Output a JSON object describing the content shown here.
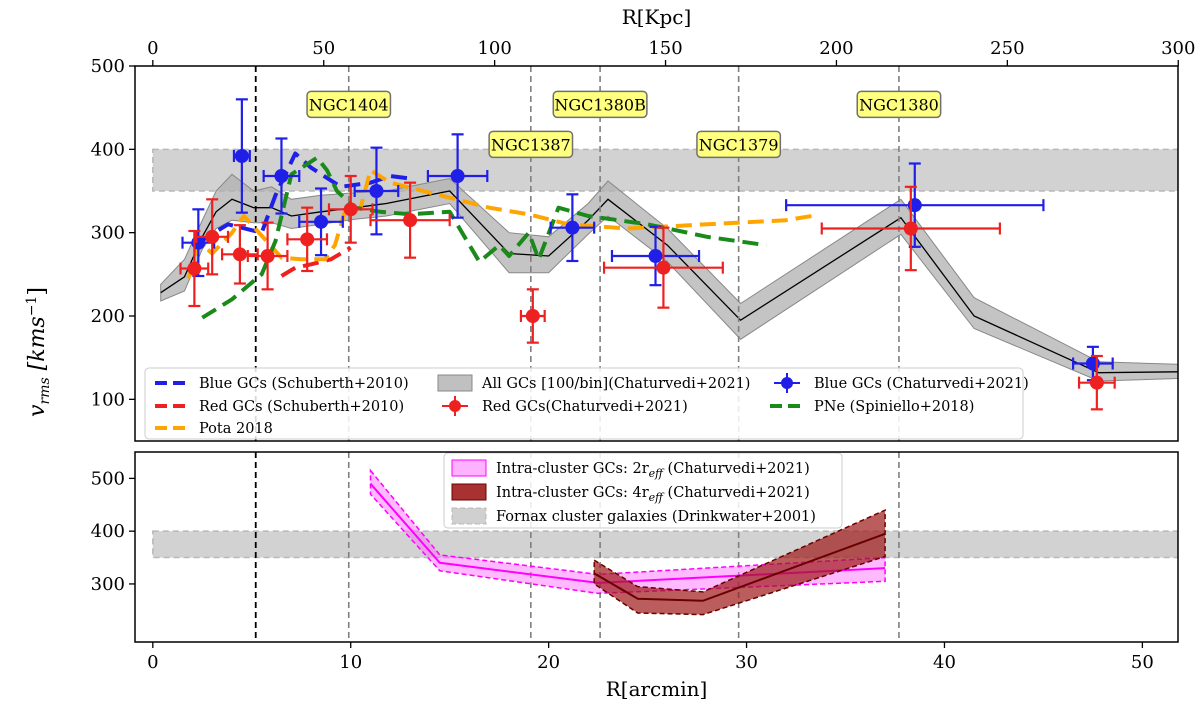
{
  "chart_data": [
    {
      "type": "line",
      "panel": "top",
      "ylabel": "v_rms [kms^-1]",
      "top_xlabel": "R[Kpc]",
      "xlim_arcmin": [
        -0.9,
        51.8
      ],
      "ylim": [
        50,
        500
      ],
      "yticks": [
        100,
        200,
        300,
        400,
        500
      ],
      "top_xticks_kpc": [
        0,
        50,
        100,
        150,
        200,
        250,
        300
      ],
      "kpc_per_arcmin": 5.79,
      "reference_lines": [
        {
          "x": 5.2,
          "style": "black-dashed"
        },
        {
          "x": 9.9,
          "label": "NGC1404",
          "label_y": 454
        },
        {
          "x": 19.1,
          "label": "NGC1387",
          "label_y": 406
        },
        {
          "x": 22.6,
          "label": "NGC1380B",
          "label_y": 454
        },
        {
          "x": 29.6,
          "label": "NGC1379",
          "label_y": 406
        },
        {
          "x": 37.7,
          "label": "NGC1380",
          "label_y": 454
        }
      ],
      "band": {
        "name": "Fornax cluster galaxies",
        "y": [
          350,
          400
        ]
      },
      "series": [
        {
          "name": "All GCs [100/bin](Chaturvedi+2021)",
          "color": "#000000",
          "x": [
            0.4,
            1.6,
            2.5,
            3.2,
            4.0,
            5.1,
            6.0,
            7.0,
            8.5,
            10.2,
            11.8,
            15.0,
            18.0,
            20.0,
            22.0,
            23.0,
            26.0,
            29.7,
            37.8,
            41.5,
            47.8,
            51.8
          ],
          "y": [
            228,
            247,
            295,
            325,
            340,
            330,
            330,
            320,
            325,
            330,
            335,
            350,
            275,
            272,
            315,
            340,
            285,
            195,
            318,
            200,
            132,
            133
          ],
          "lower": [
            218,
            230,
            280,
            305,
            315,
            312,
            312,
            305,
            310,
            316,
            320,
            335,
            252,
            252,
            298,
            320,
            265,
            172,
            298,
            185,
            122,
            125
          ],
          "upper": [
            238,
            268,
            315,
            350,
            370,
            350,
            355,
            340,
            345,
            348,
            350,
            365,
            300,
            295,
            335,
            362,
            305,
            215,
            340,
            222,
            145,
            142
          ]
        },
        {
          "name": "Blue GCs (Schuberth+2010)",
          "color": "#1f1fe8",
          "x": [
            2.3,
            3.8,
            5.5,
            6.2,
            7.2,
            8.0,
            9.5,
            11.0,
            12.0,
            13.0
          ],
          "y": [
            288,
            310,
            300,
            345,
            395,
            378,
            355,
            360,
            368,
            365
          ]
        },
        {
          "name": "Red GCs (Schuberth+2010)",
          "color": "#ef2020",
          "x": [
            6.5,
            7.2,
            8.0,
            9.0,
            10.0
          ],
          "y": [
            248,
            258,
            262,
            268,
            282
          ]
        },
        {
          "name": "Pota 2018",
          "color": "#ffa500",
          "x": [
            1.8,
            2.4,
            3.0,
            4.0,
            4.6,
            6.5,
            7.5,
            8.7,
            9.2,
            9.7,
            10.5,
            11.0,
            12.0,
            14.5,
            17.0,
            19.0,
            21.0,
            24.0,
            28.0,
            32.0,
            33.3
          ],
          "y": [
            245,
            288,
            275,
            300,
            320,
            270,
            268,
            268,
            285,
            325,
            330,
            375,
            360,
            345,
            330,
            322,
            310,
            305,
            310,
            315,
            320
          ]
        },
        {
          "name": "PNe (Spiniello+2018)",
          "color": "#1a8a1a",
          "x": [
            2.5,
            4.0,
            5.5,
            6.2,
            7.0,
            8.3,
            8.8,
            9.3,
            10.2,
            11.5,
            13.0,
            15.0,
            16.5,
            17.5,
            18.0,
            19.0,
            19.5,
            20.5,
            22.0,
            25.0,
            28.0,
            31.0
          ],
          "y": [
            198,
            220,
            250,
            290,
            370,
            390,
            375,
            350,
            330,
            325,
            322,
            325,
            265,
            285,
            272,
            300,
            268,
            330,
            320,
            310,
            295,
            285
          ]
        },
        {
          "name": "Blue GCs (Chaturvedi+2021)",
          "color": "#1f1fe8",
          "marker": "circle",
          "x": [
            2.3,
            4.5,
            6.5,
            8.5,
            11.3,
            15.4,
            21.2,
            25.4,
            38.5,
            47.5
          ],
          "y": [
            288,
            392,
            368,
            313,
            350,
            368,
            306,
            272,
            333,
            143
          ],
          "xerr": [
            0.8,
            0.4,
            0.9,
            1.1,
            1.1,
            1.5,
            1.1,
            2.2,
            6.5,
            1.0
          ],
          "yerr": [
            40,
            68,
            45,
            40,
            52,
            50,
            40,
            35,
            50,
            20
          ]
        },
        {
          "name": "Red GCs(Chaturvedi+2021)",
          "color": "#ef2020",
          "marker": "circle",
          "x": [
            2.1,
            3.0,
            4.4,
            5.8,
            7.8,
            10.0,
            13.0,
            19.2,
            25.8,
            38.3,
            47.7
          ],
          "y": [
            257,
            295,
            274,
            272,
            292,
            328,
            315,
            200,
            258,
            305,
            120
          ],
          "xerr": [
            0.7,
            0.8,
            0.9,
            1.0,
            1.0,
            1.1,
            2.0,
            0.6,
            3.0,
            4.5,
            0.9
          ],
          "yerr": [
            45,
            45,
            35,
            40,
            38,
            40,
            45,
            32,
            48,
            50,
            32
          ]
        }
      ]
    },
    {
      "type": "area",
      "panel": "bottom",
      "xlabel": "R[arcmin]",
      "xlim": [
        -0.9,
        51.8
      ],
      "ylim": [
        190,
        550
      ],
      "xticks": [
        0,
        10,
        20,
        30,
        40,
        50
      ],
      "yticks": [
        300,
        400,
        500
      ],
      "series": [
        {
          "name": "Intra-cluster GCs: 2r_eff (Chaturvedi+2021)",
          "color": "#ff00ff",
          "x": [
            11.0,
            14.5,
            22.5,
            37.0
          ],
          "y": [
            490,
            340,
            302,
            330
          ],
          "lower": [
            470,
            325,
            282,
            305
          ],
          "upper": [
            515,
            355,
            318,
            350
          ]
        },
        {
          "name": "Intra-cluster GCs: 4r_eff (Chaturvedi+2021)",
          "color": "#8b1010",
          "x": [
            22.3,
            24.5,
            27.8,
            37.0
          ],
          "y": [
            320,
            272,
            268,
            395
          ],
          "lower": [
            300,
            245,
            242,
            352
          ],
          "upper": [
            345,
            295,
            285,
            440
          ]
        },
        {
          "name": "Fornax cluster galaxies (Drinkwater+2001)",
          "color": "#d0d0d0",
          "band_y": [
            350,
            400
          ]
        }
      ]
    }
  ],
  "labels": {
    "ylabel_main": "v",
    "ylabel_sub": "rms",
    "ylabel_unit_open": " [kms",
    "ylabel_exp": "−1",
    "ylabel_close": "]",
    "xlabel": "R[arcmin]",
    "top_xlabel": "R[Kpc]"
  },
  "legend_top": [
    {
      "label": "Blue GCs (Schuberth+2010)",
      "kind": "dash",
      "color": "#1f1fe8"
    },
    {
      "label": "Red GCs (Schuberth+2010)",
      "kind": "dash",
      "color": "#ef2020"
    },
    {
      "label": "Pota 2018",
      "kind": "dash",
      "color": "#ffa500"
    },
    {
      "label": "All GCs [100/bin](Chaturvedi+2021)",
      "kind": "patch",
      "color": "#c0c0c0"
    },
    {
      "label": "Red GCs(Chaturvedi+2021)",
      "kind": "marker",
      "color": "#ef2020"
    },
    {
      "label": "Blue GCs (Chaturvedi+2021)",
      "kind": "marker",
      "color": "#1f1fe8"
    },
    {
      "label": "PNe (Spiniello+2018)",
      "kind": "dash",
      "color": "#1a8a1a"
    }
  ],
  "legend_bottom": [
    {
      "label": "Intra-cluster GCs: 2r",
      "sub": "eff",
      "rest": " (Chaturvedi+2021)",
      "kind": "patch",
      "color": "#ff7fff"
    },
    {
      "label": "Intra-cluster GCs: 4r",
      "sub": "eff",
      "rest": " (Chaturvedi+2021)",
      "kind": "patch",
      "color": "#a83232"
    },
    {
      "label": "Fornax cluster galaxies (Drinkwater+2001)",
      "kind": "patch",
      "color": "#d0d0d0"
    }
  ]
}
